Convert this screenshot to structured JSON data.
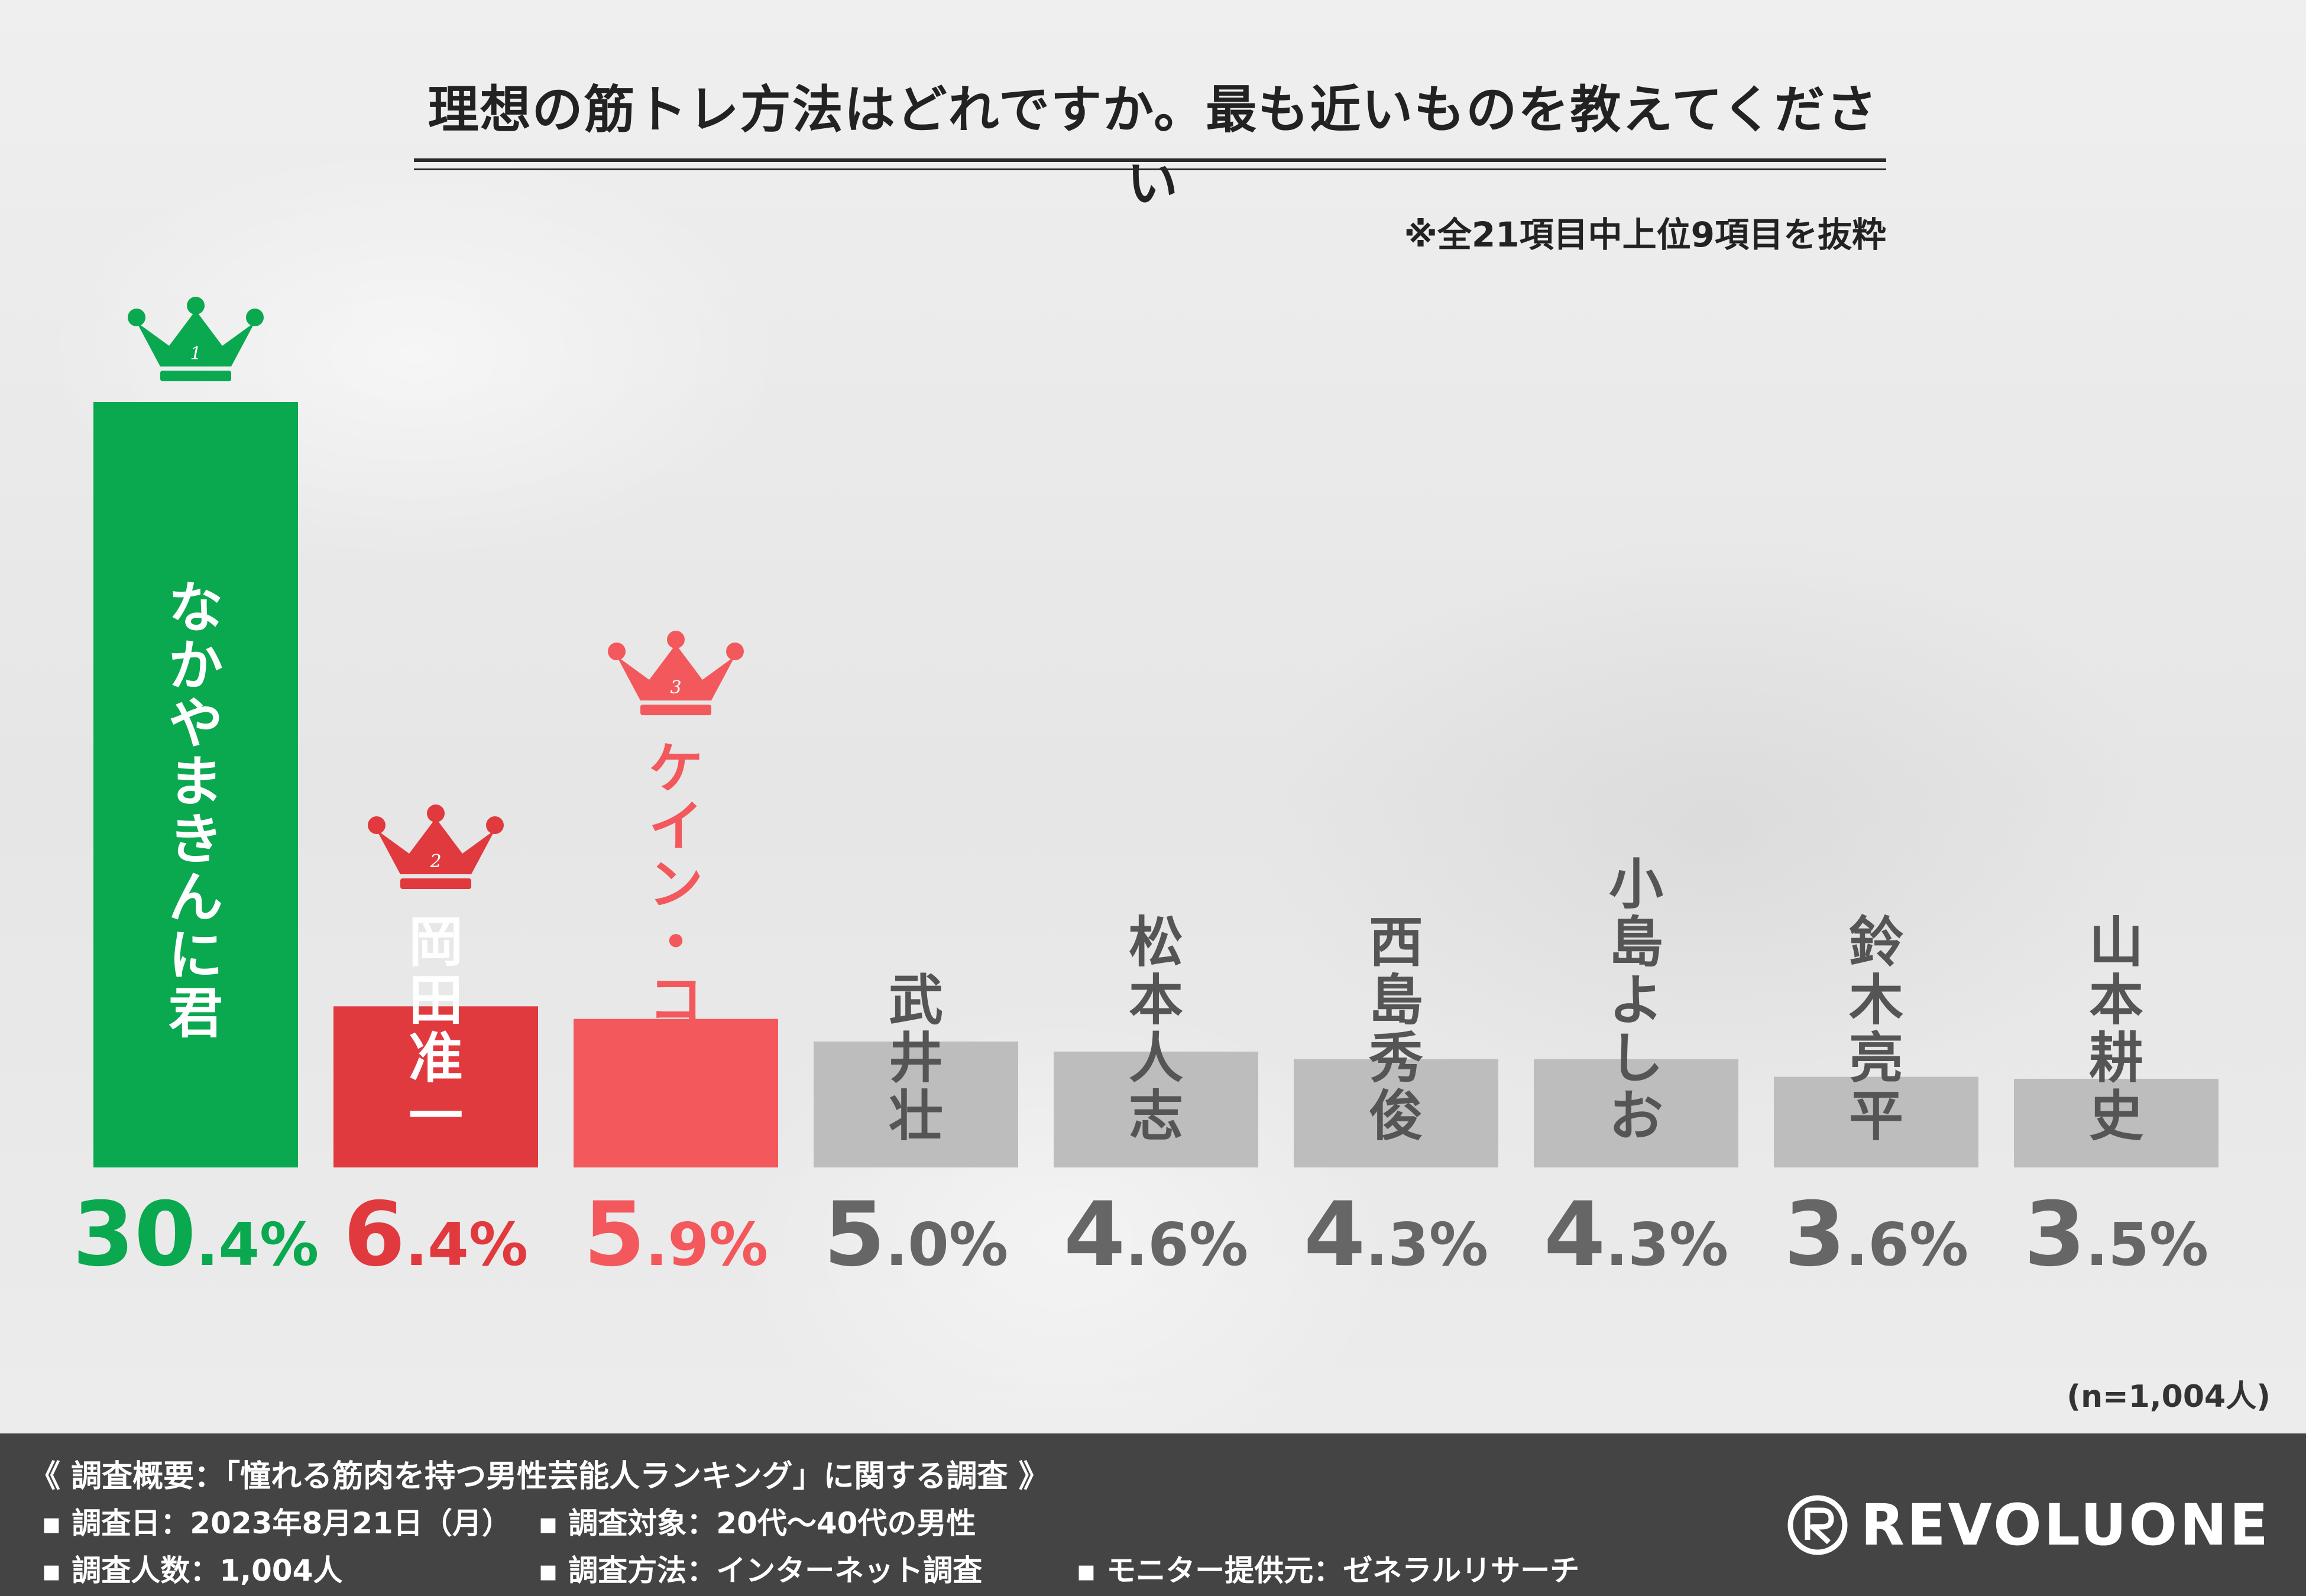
{
  "header": {
    "title": "理想の筋トレ方法はどれですか。最も近いものを教えてください",
    "note": "※全21項目中上位9項目を抜粋"
  },
  "chart_data": {
    "type": "bar",
    "categories": [
      "なかやまきんに君",
      "岡田准一",
      "ケイン・コスギ",
      "武井壮",
      "松本人志",
      "西島秀俊",
      "小島よしお",
      "鈴木亮平",
      "山本耕史"
    ],
    "values": [
      30.4,
      6.4,
      5.9,
      5.0,
      4.6,
      4.3,
      4.3,
      3.6,
      3.5
    ],
    "value_labels": [
      "30.4%",
      "6.4%",
      "5.9%",
      "5.0%",
      "4.6%",
      "4.3%",
      "4.3%",
      "3.6%",
      "3.5%"
    ],
    "ranks": [
      "1",
      "2",
      "3"
    ],
    "colors": [
      "#0aa84f",
      "#e0393e",
      "#f2585c",
      "#bdbdbd",
      "#bdbdbd",
      "#bdbdbd",
      "#bdbdbd",
      "#bdbdbd",
      "#bdbdbd"
    ],
    "label_colors": [
      "#ffffff",
      "#ffffff",
      "#f2585c",
      "#555555",
      "#555555",
      "#555555",
      "#555555",
      "#555555",
      "#555555"
    ],
    "value_colors": [
      "#0aa84f",
      "#e0393e",
      "#f2585c",
      "#666666",
      "#666666",
      "#666666",
      "#666666",
      "#666666",
      "#666666"
    ],
    "sample_note": "(n=1,004人)"
  },
  "footer": {
    "heading": "《 調査概要：「憧れる筋肉を持つ男性芸能人ランキング」に関する調査 》",
    "date": "▪ 調査日：2023年8月21日（月）",
    "target": "▪ 調査対象：20代～40代の男性",
    "count": "▪ 調査人数：1,004人",
    "method": "▪ 調査方法：インターネット調査",
    "provider": "▪ モニター提供元：ゼネラルリサーチ",
    "brand": "REVOLUONE"
  }
}
